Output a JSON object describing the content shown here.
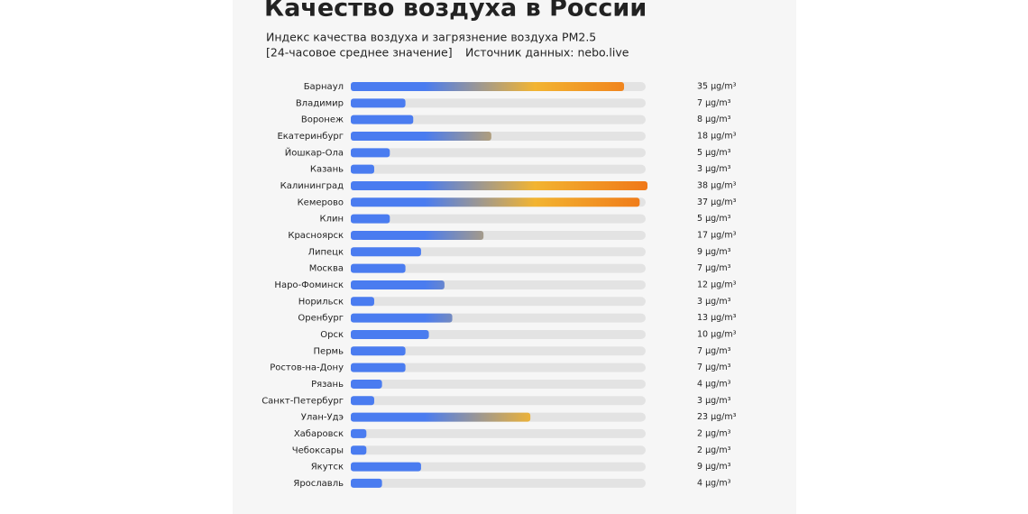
{
  "chart_data": {
    "type": "bar",
    "orientation": "horizontal",
    "title": "Качество воздуха в России",
    "subtitle": "Индекс качества воздуха и загрязнение воздуха PM2.5",
    "note": "[24-часовое среднее значение]",
    "source": "Источник данных: nebo.live",
    "categories": [
      "Барнаул",
      "Владимир",
      "Воронеж",
      "Екатеринбург",
      "Йошкар-Ола",
      "Казань",
      "Калининград",
      "Кемерово",
      "Клин",
      "Красноярск",
      "Липецк",
      "Москва",
      "Наро-Фоминск",
      "Норильск",
      "Оренбург",
      "Орск",
      "Пермь",
      "Ростов-на-Дону",
      "Рязань",
      "Санкт-Петербург",
      "Улан-Удэ",
      "Хабаровск",
      "Чебоксары",
      "Якутск",
      "Ярославль"
    ],
    "values": [
      35,
      7,
      8,
      18,
      5,
      3,
      38,
      37,
      5,
      17,
      9,
      7,
      12,
      3,
      13,
      10,
      7,
      7,
      4,
      3,
      23,
      2,
      2,
      9,
      4
    ],
    "value_labels": [
      "35 µg/m³",
      "7 µg/m³",
      "8 µg/m³",
      "18 µg/m³",
      "5 µg/m³",
      "3 µg/m³",
      "38 µg/m³",
      "37 µg/m³",
      "5 µg/m³",
      "17 µg/m³",
      "9 µg/m³",
      "7 µg/m³",
      "12 µg/m³",
      "3 µg/m³",
      "13 µg/m³",
      "10 µg/m³",
      "7 µg/m³",
      "7 µg/m³",
      "4 µg/m³",
      "3 µg/m³",
      "23 µg/m³",
      "2 µg/m³",
      "2 µg/m³",
      "9 µg/m³",
      "4 µg/m³"
    ],
    "colors": {
      "low": "#4a7cf0",
      "mid": "#f2b431",
      "high": "#f07818",
      "track": "#e3e3e3",
      "source": "#3a86d8"
    }
  }
}
